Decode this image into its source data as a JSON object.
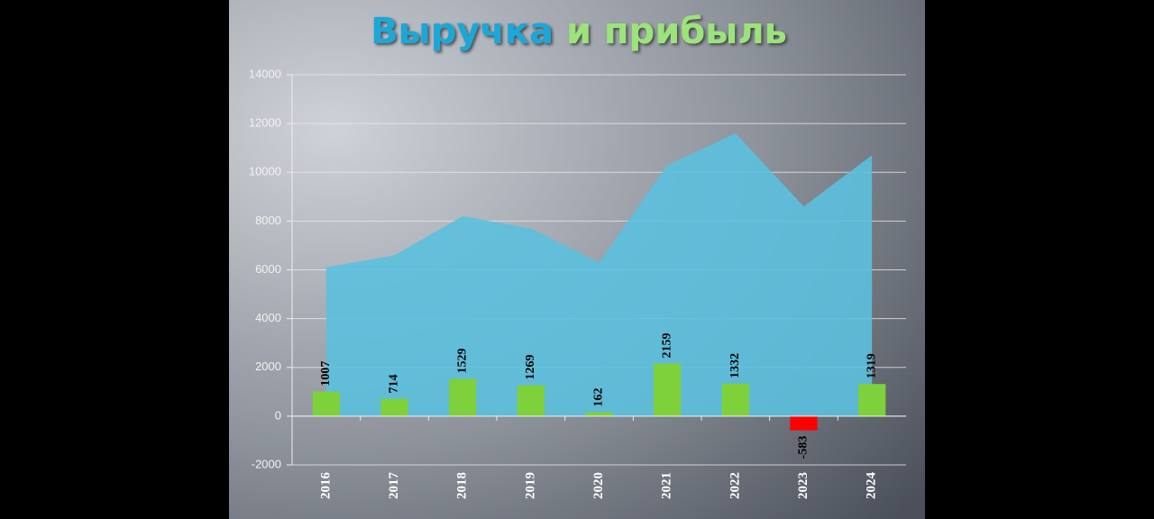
{
  "chart_data": {
    "type": "bar_area",
    "title_parts": [
      {
        "text": "Выручка",
        "color": "#1fa7d6"
      },
      {
        "text": "и прибыль",
        "color": "#9be37a"
      }
    ],
    "categories": [
      "2016",
      "2017",
      "2018",
      "2019",
      "2020",
      "2021",
      "2022",
      "2023",
      "2024"
    ],
    "series": [
      {
        "type": "area",
        "color": "#5bc0de",
        "values": [
          6100,
          6600,
          8200,
          7700,
          6300,
          10300,
          11600,
          8600,
          10700
        ]
      },
      {
        "type": "bar",
        "color": "#7ed13a",
        "negative_color": "#ff0000",
        "values": [
          1007,
          714,
          1529,
          1269,
          162,
          2159,
          1332,
          -583,
          1319
        ]
      }
    ],
    "ylim": [
      -2000,
      14000
    ],
    "yticks": [
      -2000,
      0,
      2000,
      4000,
      6000,
      8000,
      10000,
      12000,
      14000
    ],
    "grid": true
  }
}
